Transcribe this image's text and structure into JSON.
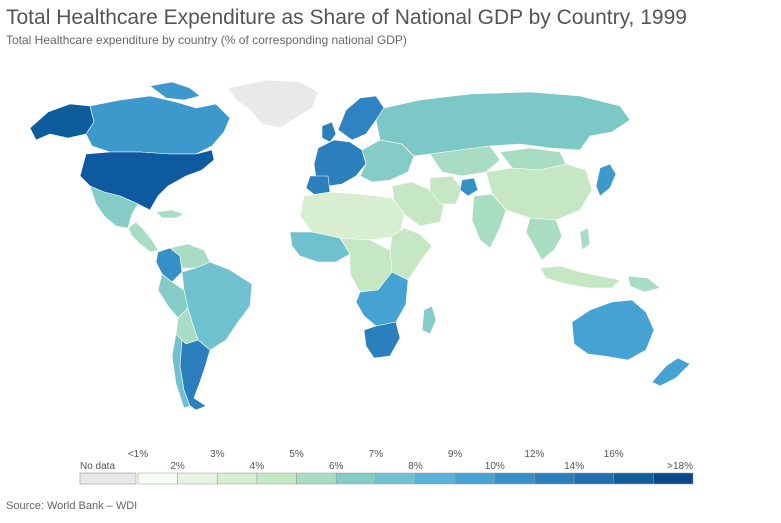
{
  "title": "Total Healthcare Expenditure as Share of National GDP by Country, 1999",
  "subtitle": "Total Healthcare expenditure by country (% of corresponding national GDP)",
  "source": "Source: World Bank – WDI",
  "legend": {
    "no_data_label": "No data",
    "no_data_color": "#e9e9e9",
    "bins": [
      {
        "upper_label": "<1%",
        "lower_label": "",
        "color": "#f7fcf5"
      },
      {
        "upper_label": "",
        "lower_label": "2%",
        "color": "#e6f4e1"
      },
      {
        "upper_label": "3%",
        "lower_label": "",
        "color": "#d7eed0"
      },
      {
        "upper_label": "",
        "lower_label": "4%",
        "color": "#c6e7c4"
      },
      {
        "upper_label": "5%",
        "lower_label": "",
        "color": "#a8dcc3"
      },
      {
        "upper_label": "",
        "lower_label": "6%",
        "color": "#85ccc6"
      },
      {
        "upper_label": "7%",
        "lower_label": "",
        "color": "#6fc1cf"
      },
      {
        "upper_label": "",
        "lower_label": "8%",
        "color": "#5ab3d8"
      },
      {
        "upper_label": "9%",
        "lower_label": "",
        "color": "#45a2d3"
      },
      {
        "upper_label": "",
        "lower_label": "10%",
        "color": "#3590c7"
      },
      {
        "upper_label": "12%",
        "lower_label": "",
        "color": "#2a7fbc"
      },
      {
        "upper_label": "",
        "lower_label": "14%",
        "color": "#1f6fae"
      },
      {
        "upper_label": "16%",
        "lower_label": "",
        "color": "#135e9d"
      },
      {
        "upper_label": "",
        "lower_label": ">18%",
        "color": "#0a4a88"
      }
    ]
  },
  "map": {
    "regions": [
      {
        "name": "greenland",
        "color": "#e9e9e9"
      },
      {
        "name": "alaska",
        "color": "#0c5c9e"
      },
      {
        "name": "canada",
        "color": "#3d98cc"
      },
      {
        "name": "usa",
        "color": "#0d5aa0"
      },
      {
        "name": "mexico",
        "color": "#85ccc6"
      },
      {
        "name": "central-america",
        "color": "#a8dcc3"
      },
      {
        "name": "colombia",
        "color": "#3590c7"
      },
      {
        "name": "venezuela",
        "color": "#a8dcc3"
      },
      {
        "name": "brazil",
        "color": "#6fc1cf"
      },
      {
        "name": "peru",
        "color": "#85ccc6"
      },
      {
        "name": "bolivia",
        "color": "#a8dcc3"
      },
      {
        "name": "argentina",
        "color": "#2a7fbc"
      },
      {
        "name": "chile",
        "color": "#6fc1cf"
      },
      {
        "name": "western-europe",
        "color": "#2a7fbc"
      },
      {
        "name": "scandinavia",
        "color": "#2f83c0"
      },
      {
        "name": "eastern-europe",
        "color": "#85ccc6"
      },
      {
        "name": "russia",
        "color": "#7cc8c6"
      },
      {
        "name": "kazakhstan",
        "color": "#a8dcc3"
      },
      {
        "name": "china",
        "color": "#c6e7c4"
      },
      {
        "name": "mongolia",
        "color": "#a8dcc3"
      },
      {
        "name": "india",
        "color": "#a8dcc3"
      },
      {
        "name": "middle-east",
        "color": "#c6e7c4"
      },
      {
        "name": "iran",
        "color": "#c6e7c4"
      },
      {
        "name": "afghanistan",
        "color": "#3590c7"
      },
      {
        "name": "japan",
        "color": "#3d98cc"
      },
      {
        "name": "southeast-asia",
        "color": "#a8dcc3"
      },
      {
        "name": "indonesia",
        "color": "#c6e7c4"
      },
      {
        "name": "north-africa",
        "color": "#d7eed0"
      },
      {
        "name": "west-africa",
        "color": "#6fc1cf"
      },
      {
        "name": "central-africa",
        "color": "#c6e7c4"
      },
      {
        "name": "east-africa",
        "color": "#c6e7c4"
      },
      {
        "name": "southern-africa",
        "color": "#45a2d3"
      },
      {
        "name": "south-africa",
        "color": "#2a7fbc"
      },
      {
        "name": "madagascar",
        "color": "#85ccc6"
      },
      {
        "name": "australia",
        "color": "#45a2d3"
      },
      {
        "name": "new-zealand",
        "color": "#45a2d3"
      },
      {
        "name": "papua-new-guinea",
        "color": "#a8dcc3"
      }
    ]
  }
}
